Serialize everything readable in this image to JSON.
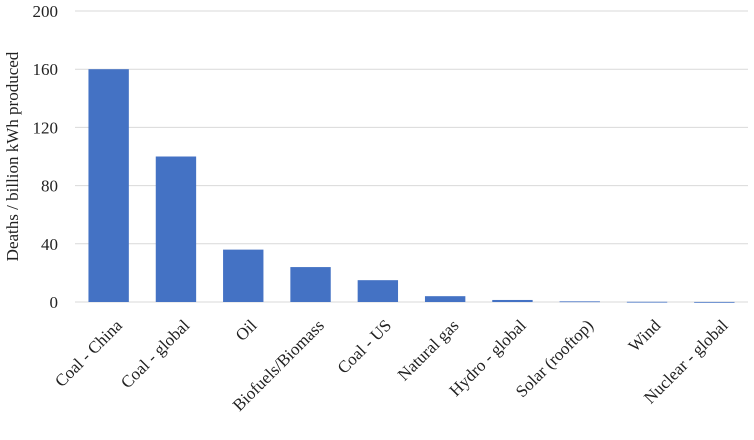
{
  "chart_data": {
    "type": "bar",
    "title": "",
    "xlabel": "",
    "ylabel": "Deaths / billion kWh produced",
    "ylim": [
      0,
      200
    ],
    "yticks": [
      0,
      40,
      80,
      120,
      160,
      200
    ],
    "grid": true,
    "legend": "none",
    "bar_color": "#4472c4",
    "categories": [
      "Coal - China",
      "Coal - global",
      "Oil",
      "Biofuels/Biomass",
      "Coal - US",
      "Natural gas",
      "Hydro - global",
      "Solar (rooftop)",
      "Wind",
      "Nuclear - global"
    ],
    "values": [
      160,
      100,
      36,
      24,
      15,
      4,
      1.4,
      0.44,
      0.15,
      0.04
    ]
  }
}
